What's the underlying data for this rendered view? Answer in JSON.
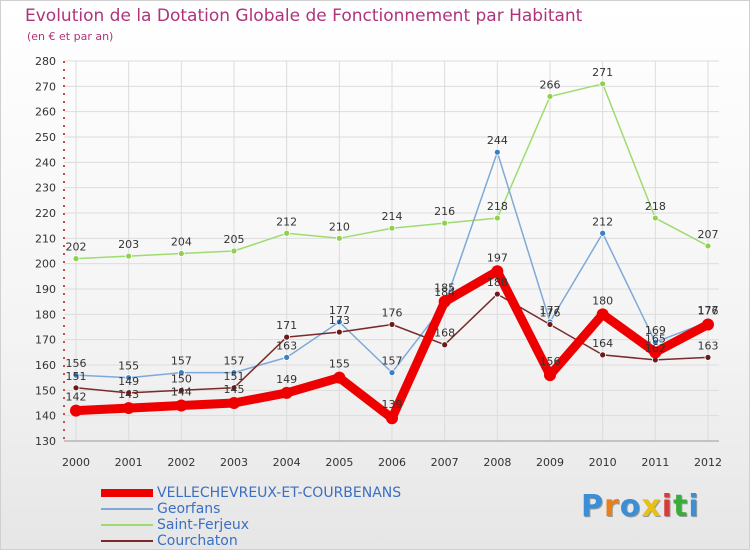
{
  "header": {
    "title": "Evolution de la Dotation Globale de Fonctionnement par Habitant",
    "subtitle": "(en € et par an)"
  },
  "logo": {
    "text": "Proxiti",
    "letter_colors": [
      "#3b8fd6",
      "#e8801a",
      "#3b8fd6",
      "#e8c01a",
      "#d73c3c",
      "#3bab3b",
      "#3b8fd6"
    ]
  },
  "chart_data": {
    "type": "line",
    "title": "Evolution de la Dotation Globale de Fonctionnement par Habitant",
    "ylabel": "(en € et par an)",
    "xlabel": "",
    "x": [
      "2000",
      "2001",
      "2002",
      "2003",
      "2004",
      "2005",
      "2006",
      "2007",
      "2008",
      "2009",
      "2010",
      "2011",
      "2012"
    ],
    "ylim": [
      130,
      280
    ],
    "yticks": [
      "130",
      "140",
      "150",
      "160",
      "170",
      "180",
      "190",
      "200",
      "210",
      "220",
      "230",
      "240",
      "250",
      "260",
      "270",
      "280"
    ],
    "grid": true,
    "legend_position": "bottom",
    "series": [
      {
        "name": "Saint-Ferjeux",
        "color": "#8fd14f",
        "line_color": "#9fdc6f",
        "values": [
          202,
          203,
          204,
          205,
          212,
          210,
          214,
          216,
          218,
          266,
          271,
          218,
          207
        ]
      },
      {
        "name": "Georfans",
        "color": "#3b7fc4",
        "line_color": "#7fa9d8",
        "values": [
          156,
          155,
          157,
          157,
          163,
          177,
          157,
          184,
          244,
          177,
          212,
          169,
          177
        ]
      },
      {
        "name": "Courchaton",
        "color": "#6b1a1a",
        "line_color": "#7a2a2a",
        "values": [
          151,
          149,
          150,
          151,
          171,
          173,
          176,
          168,
          188,
          176,
          164,
          162,
          163
        ]
      },
      {
        "name": "VELLECHEVREUX-ET-COURBENANS",
        "color": "#ee0000",
        "line_color": "#ee0000",
        "values": [
          142,
          143,
          144,
          145,
          149,
          155,
          139,
          185,
          197,
          156,
          180,
          165,
          176
        ]
      }
    ]
  },
  "legend": [
    {
      "label": "VELLECHEVREUX-ET-COURBENANS",
      "color": "#ee0000"
    },
    {
      "label": "Georfans",
      "color": "#7fa9d8"
    },
    {
      "label": "Saint-Ferjeux",
      "color": "#9fdc6f"
    },
    {
      "label": "Courchaton",
      "color": "#7a2a2a"
    }
  ]
}
